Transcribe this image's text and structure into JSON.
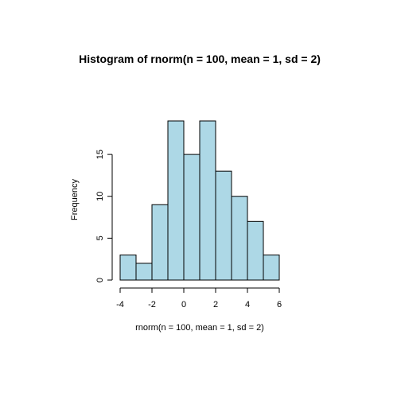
{
  "chart_data": {
    "type": "bar",
    "title": "Histogram of rnorm(n = 100, mean = 1, sd = 2)",
    "xlabel": "rnorm(n = 100, mean = 1, sd = 2)",
    "ylabel": "Frequency",
    "bin_edges": [
      -4,
      -3,
      -2,
      -1,
      0,
      1,
      2,
      3,
      4,
      5,
      6
    ],
    "values": [
      3,
      2,
      9,
      19,
      15,
      19,
      13,
      10,
      7,
      3
    ],
    "xlim": [
      -4,
      6
    ],
    "ylim": [
      0,
      19
    ],
    "x_ticks": [
      -4,
      -2,
      0,
      2,
      4,
      6
    ],
    "y_ticks": [
      0,
      5,
      10,
      15
    ],
    "bar_color": "#add8e6",
    "border_color": "#000000",
    "grid": false,
    "legend": "none"
  }
}
